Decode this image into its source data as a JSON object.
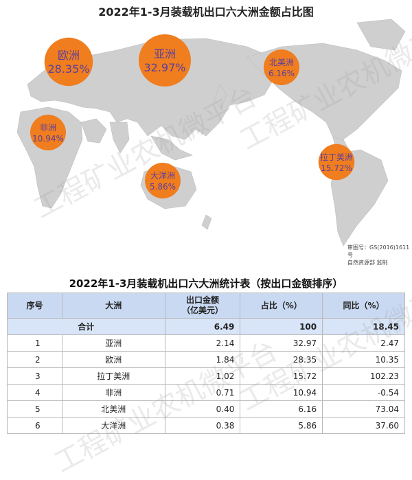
{
  "map_title": "2022年1-3月装载机出口六大洲金额占比图",
  "approval_note": [
    "审图号：GS(2016)1611号",
    "自然资源部 监制"
  ],
  "watermark": "工程矿业农机微平台",
  "colors": {
    "bubble_fill": "#f07d1e",
    "bubble_text": "#5a3fa0",
    "land": "#cfcfcf",
    "header_bg": "#c9d9f2",
    "total_bg": "#d8e4f7"
  },
  "chart_data": [
    {
      "type": "pie",
      "title": "2022年1-3月装载机出口六大洲金额占比图",
      "unit": "%",
      "categories": [
        "亚洲",
        "欧洲",
        "拉丁美洲",
        "非洲",
        "北美洲",
        "大洋洲"
      ],
      "values": [
        32.97,
        28.35,
        15.72,
        10.94,
        6.16,
        5.86
      ],
      "labels": [
        "32.97%",
        "28.35%",
        "15.72%",
        "10.94%",
        "6.16%",
        "5.86%"
      ]
    },
    {
      "type": "table",
      "title": "2022年1-3月装载机出口六大洲统计表（按出口金额排序）",
      "columns": [
        "序号",
        "大洲",
        "出口金额\n（亿美元）",
        "占比（%）",
        "同比（%）"
      ],
      "total": {
        "label": "合计",
        "amount": "6.49",
        "share": "100",
        "yoy": "18.45"
      },
      "rows": [
        {
          "idx": "1",
          "name": "亚洲",
          "amount": "2.14",
          "share": "32.97",
          "yoy": "2.47"
        },
        {
          "idx": "2",
          "name": "欧洲",
          "amount": "1.84",
          "share": "28.35",
          "yoy": "10.35"
        },
        {
          "idx": "3",
          "name": "拉丁美洲",
          "amount": "1.02",
          "share": "15.72",
          "yoy": "102.23"
        },
        {
          "idx": "4",
          "name": "非洲",
          "amount": "0.71",
          "share": "10.94",
          "yoy": "-0.54"
        },
        {
          "idx": "5",
          "name": "北美洲",
          "amount": "0.40",
          "share": "6.16",
          "yoy": "73.04"
        },
        {
          "idx": "6",
          "name": "大洋洲",
          "amount": "0.38",
          "share": "5.86",
          "yoy": "37.60"
        }
      ]
    }
  ]
}
